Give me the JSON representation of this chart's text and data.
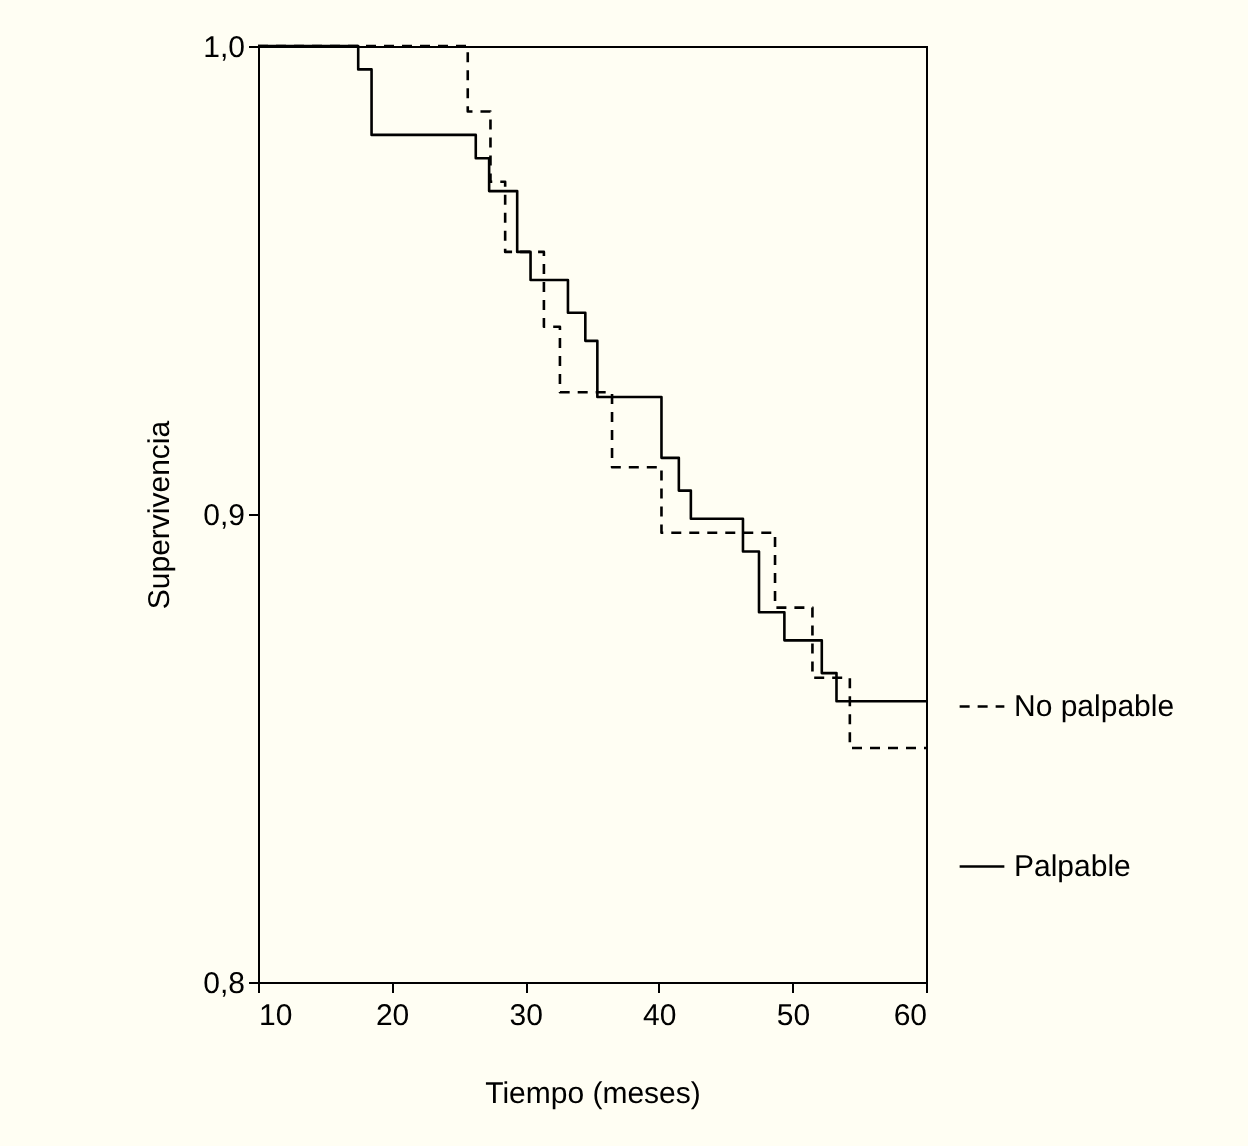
{
  "chart_data": {
    "type": "step",
    "xlabel": "Tiempo (meses)",
    "ylabel": "Supervivencia",
    "xlim": [
      10,
      60
    ],
    "xticks": [
      10,
      20,
      30,
      40,
      50,
      60
    ],
    "ylim": [
      0.8,
      1.0
    ],
    "yticks": [
      {
        "value": 0.8,
        "label": "0,8"
      },
      {
        "value": 0.9,
        "label": "0,9"
      },
      {
        "value": 1.0,
        "label": "1,0"
      }
    ],
    "grid": false,
    "legend": "right",
    "series": [
      {
        "name": "No palpable",
        "color": "#000000",
        "line_style": "dashed",
        "x": [
          10,
          25.7,
          27.4,
          28.5,
          31.4,
          32.6,
          36.5,
          40.2,
          48.7,
          51.5,
          54.3,
          60
        ],
        "values": [
          1.0,
          0.986,
          0.971,
          0.956,
          0.94,
          0.926,
          0.91,
          0.896,
          0.88,
          0.865,
          0.85,
          0.85
        ]
      },
      {
        "name": "Palpable",
        "color": "#000000",
        "line_style": "solid",
        "x": [
          10,
          17.5,
          18.5,
          26.3,
          27.3,
          29.4,
          30.4,
          33.2,
          34.5,
          35.4,
          40.2,
          41.5,
          42.4,
          46.3,
          47.5,
          49.4,
          52.2,
          53.3,
          60
        ],
        "values": [
          1.0,
          0.995,
          0.981,
          0.976,
          0.969,
          0.956,
          0.95,
          0.943,
          0.937,
          0.925,
          0.912,
          0.905,
          0.899,
          0.892,
          0.879,
          0.873,
          0.866,
          0.86,
          0.86
        ]
      }
    ]
  }
}
